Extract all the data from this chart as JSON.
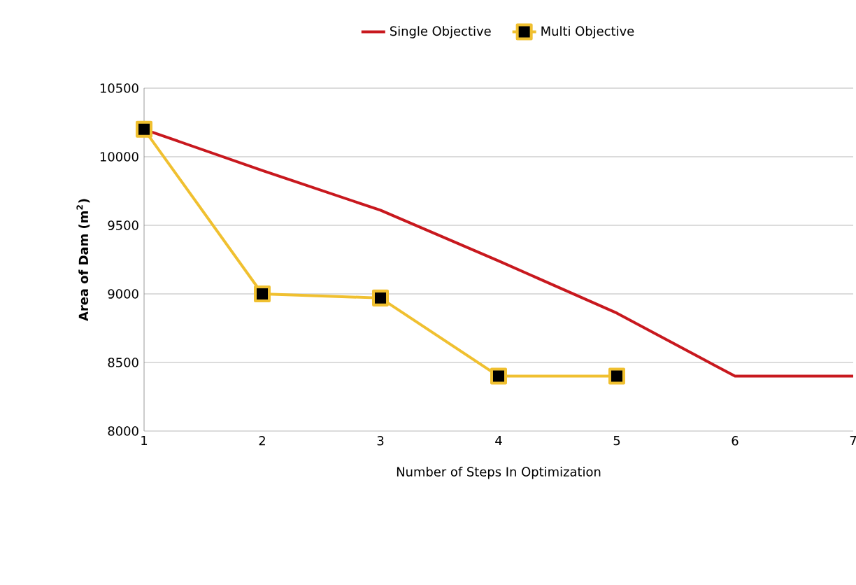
{
  "chart_data": {
    "type": "line",
    "xlabel": "Number of Steps In Optimization",
    "ylabel": "Area of Dam (m$^{2}$)",
    "x": [
      1,
      2,
      3,
      4,
      5,
      6,
      7
    ],
    "series": [
      {
        "name": "Single Objective",
        "color": "#c8181e",
        "marker": "none",
        "values": [
          10200,
          9900,
          9610,
          9240,
          8860,
          8400,
          8400
        ]
      },
      {
        "name": "Multi Objective",
        "color": "#f0c030",
        "marker": "square",
        "values": [
          10200,
          9000,
          8970,
          8400,
          8400,
          null,
          null
        ]
      }
    ],
    "xlim": [
      1,
      7
    ],
    "xticks": [
      1,
      2,
      3,
      4,
      5,
      6,
      7
    ],
    "ylim": [
      8000,
      10500
    ],
    "yticks": [
      8000,
      8500,
      9000,
      9500,
      10000,
      10500
    ],
    "grid": "y",
    "legend": "top"
  }
}
